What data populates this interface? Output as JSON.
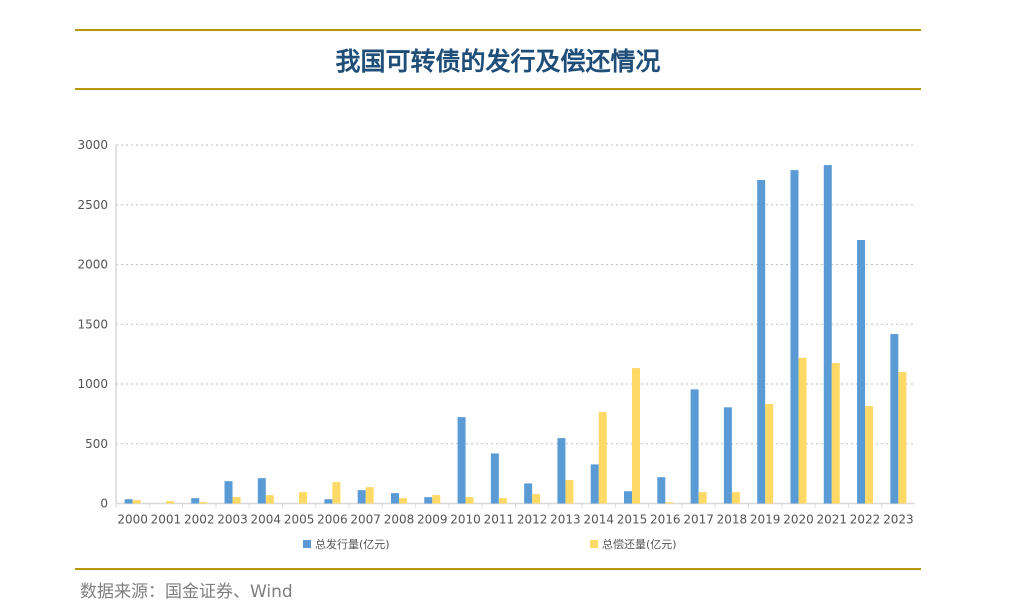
{
  "title": "我国可转债的发行及偿还情况",
  "source": "数据来源：国金证券、Wind",
  "chart_data": {
    "type": "bar",
    "title": "我国可转债的发行及偿还情况",
    "xlabel": "",
    "ylabel": "",
    "ylim": [
      0,
      3000
    ],
    "yticks": [
      0,
      500,
      1000,
      1500,
      2000,
      2500,
      3000
    ],
    "grid": true,
    "legend_position": "bottom",
    "categories": [
      "2000",
      "2001",
      "2002",
      "2003",
      "2004",
      "2005",
      "2006",
      "2007",
      "2008",
      "2009",
      "2010",
      "2011",
      "2012",
      "2013",
      "2014",
      "2015",
      "2016",
      "2017",
      "2018",
      "2019",
      "2020",
      "2021",
      "2022",
      "2023"
    ],
    "series": [
      {
        "name": "总发行量(亿元)",
        "color": "#5b9bd5",
        "values": [
          36,
          0,
          45,
          187,
          212,
          0,
          36,
          112,
          87,
          53,
          723,
          419,
          168,
          547,
          327,
          103,
          220,
          955,
          805,
          2707,
          2790,
          2832,
          2205,
          1418
        ]
      },
      {
        "name": "总偿还量(亿元)",
        "color": "#ffd966",
        "values": [
          28,
          20,
          12,
          53,
          70,
          95,
          179,
          137,
          45,
          70,
          53,
          45,
          78,
          196,
          765,
          1133,
          10,
          95,
          95,
          833,
          1219,
          1175,
          815,
          1100
        ]
      }
    ]
  }
}
